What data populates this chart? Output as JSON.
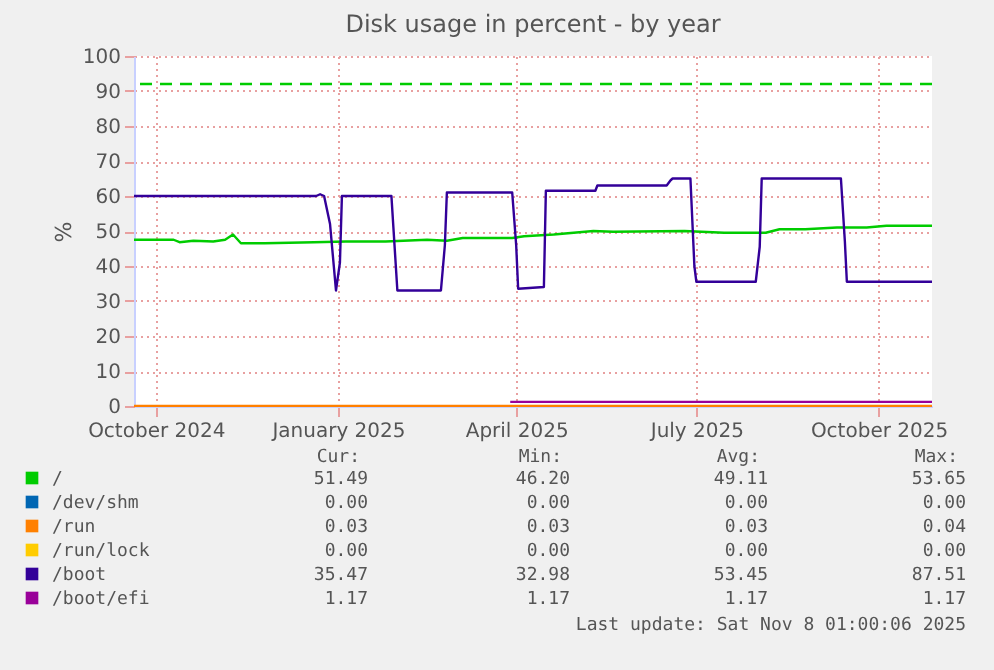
{
  "chart_data": {
    "type": "line",
    "title": "Disk usage in percent - by year",
    "ylabel": "%",
    "xlim": [
      "2024-09-20",
      "2025-10-28"
    ],
    "xticks": [
      {
        "value": "2024-10-01",
        "label": "October 2024"
      },
      {
        "value": "2025-01-01",
        "label": "January 2025"
      },
      {
        "value": "2025-04-01",
        "label": "April 2025"
      },
      {
        "value": "2025-07-01",
        "label": "July 2025"
      },
      {
        "value": "2025-10-01",
        "label": "October 2025"
      }
    ],
    "ylim": [
      0,
      100
    ],
    "yticks": [
      0,
      10,
      20,
      30,
      40,
      50,
      60,
      70,
      80,
      90,
      100
    ],
    "grid": true,
    "legend": "bottom",
    "series": [
      {
        "name": "/",
        "color": "#00cc00",
        "x": [
          "2024-09-20",
          "2024-10-10",
          "2024-10-13",
          "2024-10-20",
          "2024-10-30",
          "2024-11-05",
          "2024-11-09",
          "2024-11-13",
          "2024-11-25",
          "2024-12-20",
          "2025-01-05",
          "2025-01-25",
          "2025-02-15",
          "2025-02-25",
          "2025-03-05",
          "2025-03-30",
          "2025-04-05",
          "2025-04-20",
          "2025-04-30",
          "2025-05-10",
          "2025-05-20",
          "2025-06-25",
          "2025-07-15",
          "2025-08-05",
          "2025-08-12",
          "2025-08-25",
          "2025-09-10",
          "2025-09-25",
          "2025-10-05",
          "2025-10-28"
        ],
        "values": [
          47.5,
          47.5,
          46.8,
          47.2,
          47,
          47.5,
          49,
          46.5,
          46.5,
          46.8,
          47,
          47,
          47.5,
          47.2,
          48,
          48,
          48.5,
          49,
          49.5,
          50,
          49.8,
          50,
          49.5,
          49.5,
          50.5,
          50.5,
          51,
          51,
          51.5,
          51.5
        ]
      },
      {
        "name": "/dev/shm",
        "color": "#0066b3"
      },
      {
        "name": "/run",
        "color": "#ff8000",
        "x": [
          "2024-09-20",
          "2025-10-28"
        ],
        "values": [
          0.03,
          0.03
        ]
      },
      {
        "name": "/run/lock",
        "color": "#ffcc00"
      },
      {
        "name": "/boot",
        "color": "#330099",
        "x": [
          "2024-09-20",
          "2024-12-21",
          "2024-12-23",
          "2024-12-25",
          "2024-12-28",
          "2024-12-31",
          "2025-01-02",
          "2025-01-03",
          "2025-01-28",
          "2025-01-29",
          "2025-01-31",
          "2025-02-22",
          "2025-02-24",
          "2025-02-25",
          "2025-03-30",
          "2025-04-01",
          "2025-04-02",
          "2025-04-15",
          "2025-04-16",
          "2025-05-11",
          "2025-05-12",
          "2025-06-16",
          "2025-06-18",
          "2025-06-19",
          "2025-06-28",
          "2025-06-30",
          "2025-07-01",
          "2025-07-31",
          "2025-08-02",
          "2025-08-03",
          "2025-09-12",
          "2025-09-14",
          "2025-09-15",
          "2025-10-28"
        ],
        "values": [
          60,
          60,
          60.5,
          60,
          52,
          33,
          41,
          60,
          60,
          51,
          33,
          33,
          46,
          61,
          61,
          46,
          33.5,
          34,
          61.5,
          61.5,
          63,
          63,
          64.5,
          65,
          65,
          40,
          35.5,
          35.5,
          45.5,
          65,
          65,
          47,
          35.5,
          35.5
        ]
      },
      {
        "name": "/boot/efi",
        "color": "#990099",
        "x": [
          "2025-03-29",
          "2025-10-28"
        ],
        "values": [
          1.17,
          1.17
        ]
      }
    ],
    "ref_lines": [
      {
        "axis": "y",
        "value": 92,
        "color": "#00cc00",
        "line_style": "dashed"
      }
    ],
    "annotations": [
      "Cur:",
      "Min:",
      "Avg:",
      "Max:",
      "51.49",
      "46.20",
      "49.11",
      "53.65",
      "0.00",
      "0.00",
      "0.00",
      "0.00",
      "0.03",
      "0.03",
      "0.03",
      "0.04",
      "0.00",
      "0.00",
      "0.00",
      "0.00",
      "35.47",
      "32.98",
      "53.45",
      "87.51",
      "1.17",
      "1.17",
      "1.17",
      "1.17",
      "Last update: Sat Nov  8 01:00:06 2025"
    ]
  }
}
